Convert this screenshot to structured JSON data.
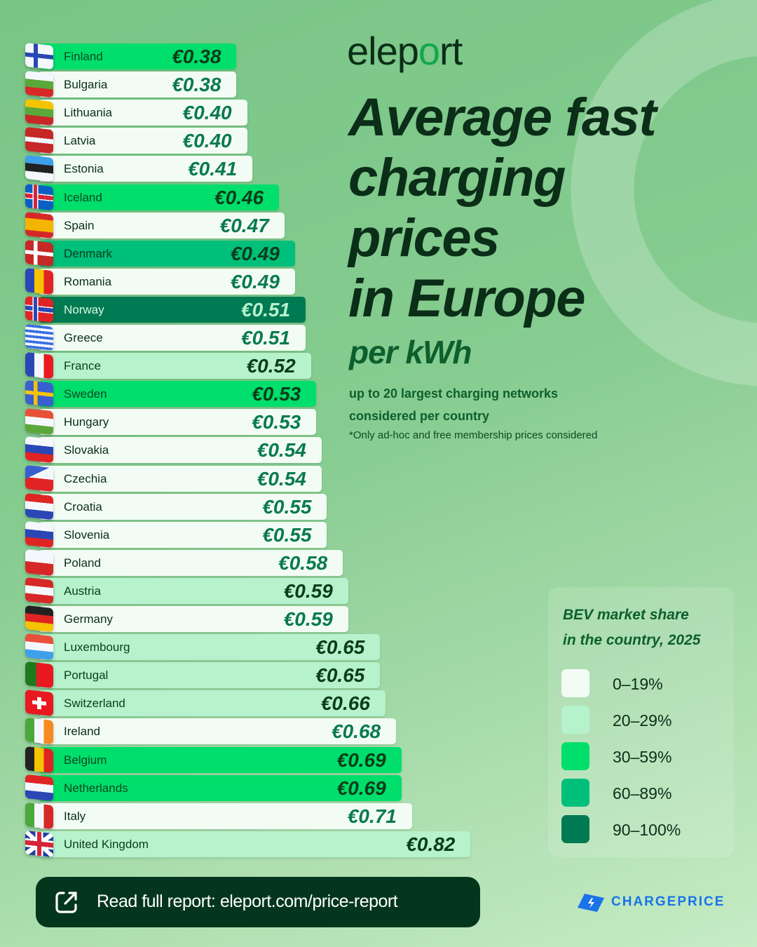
{
  "brand": {
    "logo": "eleport",
    "partner": "CHARGEPRICE"
  },
  "title": {
    "main_lines": [
      "Average fast",
      "charging",
      "prices",
      "in Europe"
    ],
    "unit": "per kWh",
    "subtitle": "up to 20 largest charging networks considered per country",
    "note": "*Only ad-hoc and free membership prices considered"
  },
  "legend": {
    "title_lines": [
      "BEV market share",
      "in the country, 2025"
    ],
    "items": [
      {
        "label": "0–19%",
        "color": "#f2fcf4"
      },
      {
        "label": "20–29%",
        "color": "#b6f2cc"
      },
      {
        "label": "30–59%",
        "color": "#00de6b"
      },
      {
        "label": "60–89%",
        "color": "#00bf7a"
      },
      {
        "label": "90–100%",
        "color": "#007a52"
      }
    ]
  },
  "cta": {
    "label": "Read full report: eleport.com/price-report",
    "icon": "external-link-icon"
  },
  "chart_data": {
    "type": "bar",
    "orientation": "horizontal",
    "unit": "€ per kWh",
    "categories": [
      "Finland",
      "Bulgaria",
      "Lithuania",
      "Latvia",
      "Estonia",
      "Iceland",
      "Spain",
      "Denmark",
      "Romania",
      "Norway",
      "Greece",
      "France",
      "Sweden",
      "Hungary",
      "Slovakia",
      "Czechia",
      "Croatia",
      "Slovenia",
      "Poland",
      "Austria",
      "Germany",
      "Luxembourg",
      "Portugal",
      "Switzerland",
      "Ireland",
      "Belgium",
      "Netherlands",
      "Italy",
      "United Kingdom"
    ],
    "values": [
      0.38,
      0.38,
      0.4,
      0.4,
      0.41,
      0.46,
      0.47,
      0.49,
      0.49,
      0.51,
      0.51,
      0.52,
      0.53,
      0.53,
      0.54,
      0.54,
      0.55,
      0.55,
      0.58,
      0.59,
      0.59,
      0.65,
      0.65,
      0.66,
      0.68,
      0.69,
      0.69,
      0.71,
      0.82
    ],
    "labels": [
      "€0.38",
      "€0.38",
      "€0.40",
      "€0.40",
      "€0.41",
      "€0.46",
      "€0.47",
      "€0.49",
      "€0.49",
      "€0.51",
      "€0.51",
      "€0.52",
      "€0.53",
      "€0.53",
      "€0.54",
      "€0.54",
      "€0.55",
      "€0.55",
      "€0.58",
      "€0.59",
      "€0.59",
      "€0.65",
      "€0.65",
      "€0.66",
      "€0.68",
      "€0.69",
      "€0.69",
      "€0.71",
      "€0.82"
    ],
    "bev_share_class": [
      "30–59%",
      "0–19%",
      "0–19%",
      "0–19%",
      "0–19%",
      "30–59%",
      "0–19%",
      "60–89%",
      "0–19%",
      "90–100%",
      "0–19%",
      "20–29%",
      "30–59%",
      "0–19%",
      "0–19%",
      "0–19%",
      "0–19%",
      "0–19%",
      "0–19%",
      "20–29%",
      "0–19%",
      "20–29%",
      "20–29%",
      "20–29%",
      "0–19%",
      "30–59%",
      "30–59%",
      "0–19%",
      "20–29%"
    ]
  }
}
